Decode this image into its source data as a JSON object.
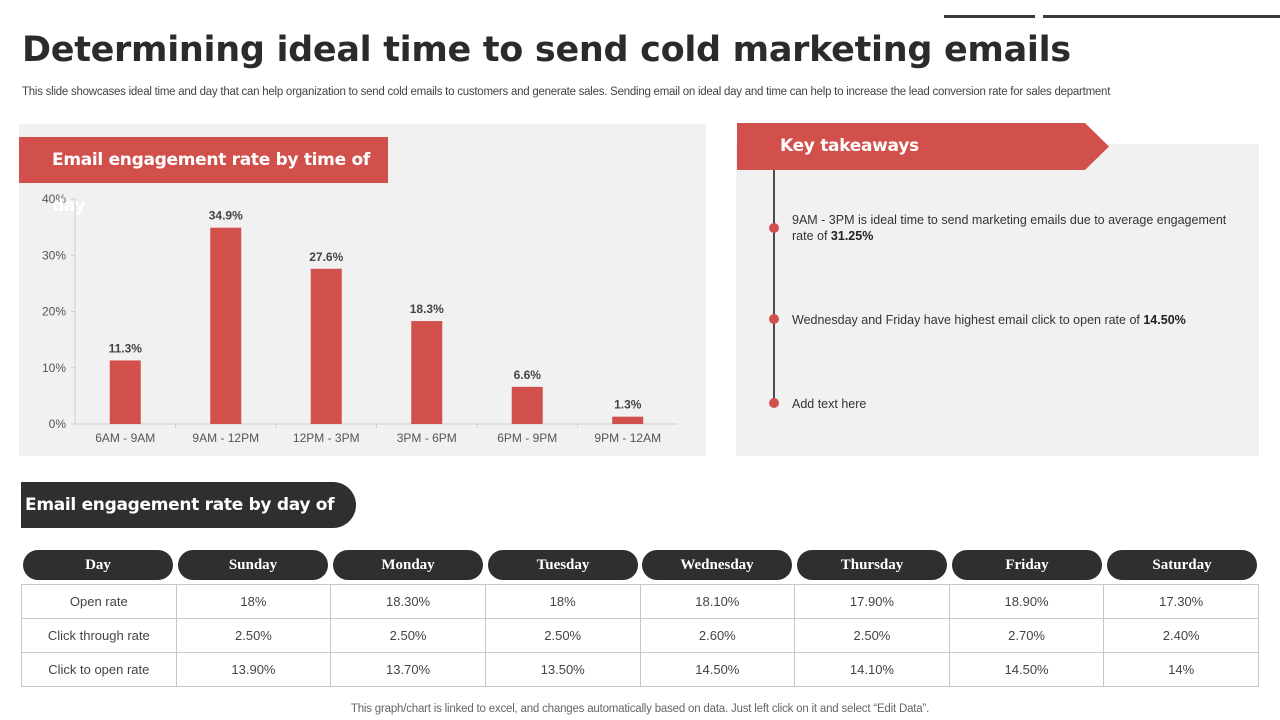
{
  "slide": {
    "title": "Determining ideal time to send cold marketing emails",
    "subtitle": "This slide showcases ideal time and day that can help organization to send cold emails to customers and generate sales. Sending email on ideal day and time can help to increase the lead conversion rate for sales department",
    "footer": "This graph/chart is linked to excel,  and changes automatically based on data. Just left click on it and select “Edit Data”."
  },
  "chart_header": "Email engagement rate by time of day",
  "chart_data": {
    "type": "bar",
    "categories": [
      "6AM - 9AM",
      "9AM - 12PM",
      "12PM - 3PM",
      "3PM - 6PM",
      "6PM - 9PM",
      "9PM - 12AM"
    ],
    "values": [
      11.3,
      34.9,
      27.6,
      18.3,
      6.6,
      1.3
    ],
    "value_labels": [
      "11.3%",
      "34.9%",
      "27.6%",
      "18.3%",
      "6.6%",
      "1.3%"
    ],
    "yticks": [
      "0%",
      "10%",
      "20%",
      "30%",
      "40%"
    ],
    "ylim": [
      0,
      40
    ],
    "bar_color": "#d2504b"
  },
  "takeaways": {
    "header": "Key takeaways",
    "items": [
      {
        "text": "9AM - 3PM is ideal time to send marketing emails due to average engagement  rate of ",
        "bold": "31.25%"
      },
      {
        "text": "Wednesday and Friday have highest email click to open rate of ",
        "bold": "14.50%"
      },
      {
        "text": "Add text here",
        "bold": ""
      }
    ]
  },
  "week_table": {
    "header": "Email engagement rate by day of week",
    "columns": [
      "Day",
      "Sunday",
      "Monday",
      "Tuesday",
      "Wednesday",
      "Thursday",
      "Friday",
      "Saturday"
    ],
    "rows": [
      [
        "Open rate",
        "18%",
        "18.30%",
        "18%",
        "18.10%",
        "17.90%",
        "18.90%",
        "17.30%"
      ],
      [
        "Click through rate",
        "2.50%",
        "2.50%",
        "2.50%",
        "2.60%",
        "2.50%",
        "2.70%",
        "2.40%"
      ],
      [
        "Click to open rate",
        "13.90%",
        "13.70%",
        "13.50%",
        "14.50%",
        "14.10%",
        "14.50%",
        "14%"
      ]
    ]
  },
  "colors": {
    "accent": "#d2504b",
    "dark": "#2f2f2f",
    "panel": "#f1f1f1"
  }
}
